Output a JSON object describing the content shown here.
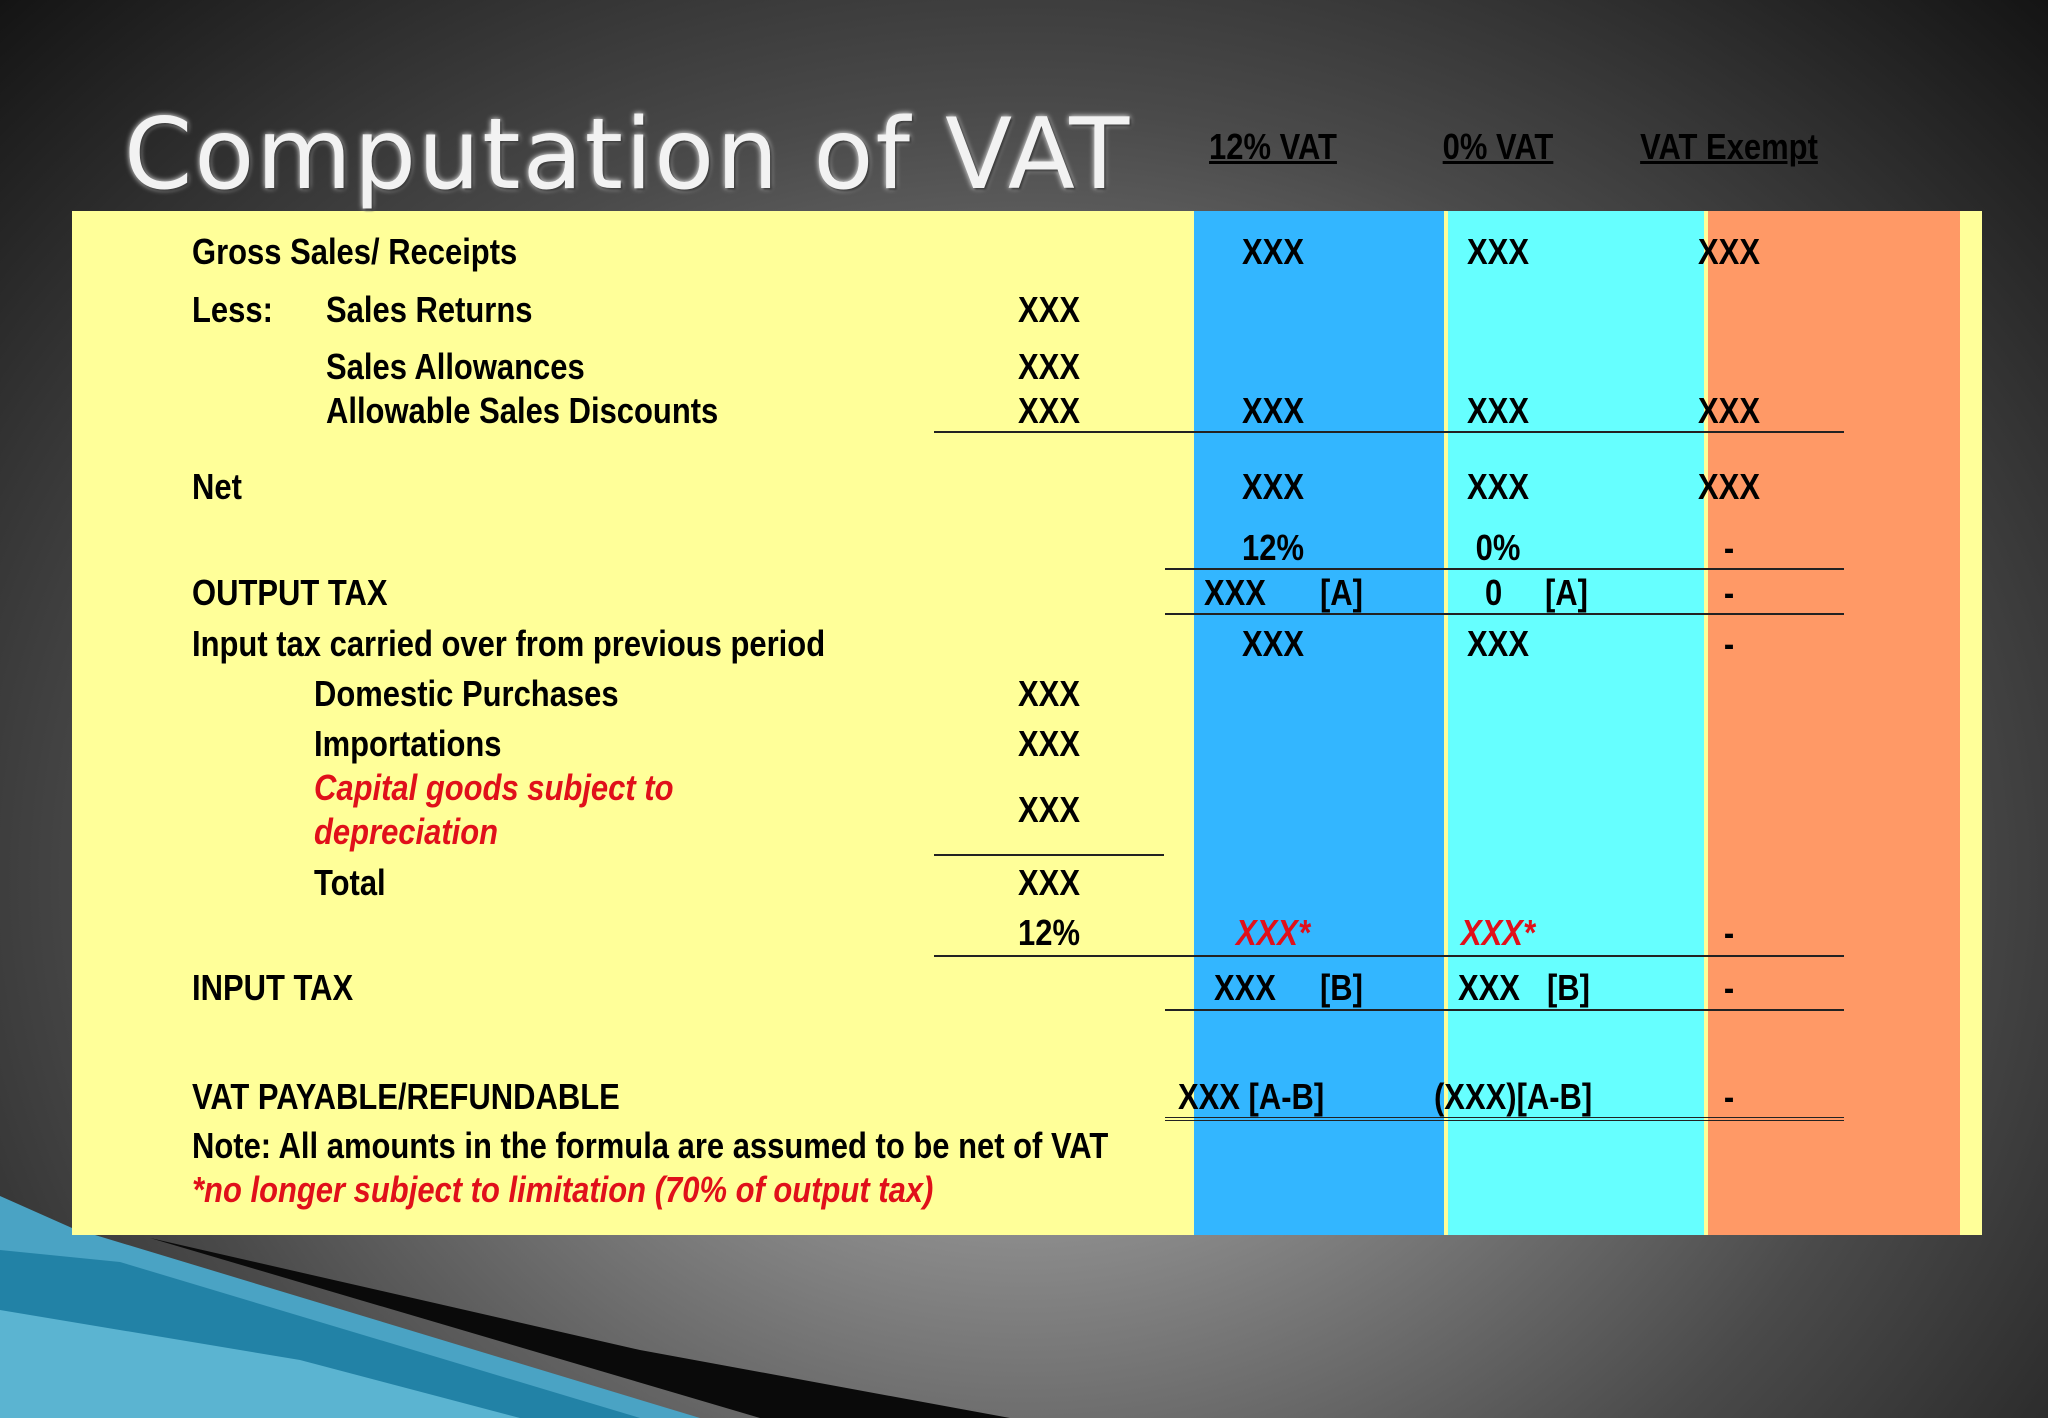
{
  "slide": {
    "title": "Computation of VAT",
    "headers": {
      "vat12": "12% VAT",
      "vat0": "0% VAT",
      "exempt": "VAT Exempt"
    }
  },
  "colors": {
    "panel": "#ffff99",
    "vat12_column": "#33b6ff",
    "vat0_column": "#66ffff",
    "exempt_column": "#ff9966",
    "red_text": "#e0101a"
  },
  "rows": {
    "gross": {
      "label": "Gross  Sales/ Receipts",
      "vat12": "XXX",
      "vat0": "XXX",
      "exempt": "XXX"
    },
    "less_prefix": "Less:",
    "sales_returns": {
      "label": "Sales Returns",
      "amount": "XXX"
    },
    "sales_allowances": {
      "label": "Sales Allowances",
      "amount": "XXX"
    },
    "allowable_discounts": {
      "label": "Allowable Sales Discounts",
      "amount": "XXX",
      "vat12": "XXX",
      "vat0": "XXX",
      "exempt": "XXX"
    },
    "net": {
      "label": "Net",
      "vat12": "XXX",
      "vat0": "XXX",
      "exempt": "XXX"
    },
    "rate": {
      "vat12": "12%",
      "vat0": "0%",
      "exempt": "-"
    },
    "output_tax": {
      "label": "OUTPUT TAX",
      "vat12": "XXX",
      "vat12_ref": "[A]",
      "vat0": "0",
      "vat0_ref": "[A]",
      "exempt": "-"
    },
    "carried_over": {
      "label": "Input tax carried over from previous period",
      "vat12": "XXX",
      "vat0": "XXX",
      "exempt": "-"
    },
    "domestic": {
      "label": "Domestic Purchases",
      "amount": "XXX"
    },
    "importations": {
      "label": "Importations",
      "amount": "XXX"
    },
    "capital_goods": {
      "label_line1": "Capital goods subject to",
      "label_line2": "depreciation",
      "amount": "XXX"
    },
    "total": {
      "label": "Total",
      "amount": "XXX"
    },
    "input_rate": {
      "amount": "12%",
      "vat12": "XXX*",
      "vat0": "XXX*",
      "exempt": "-"
    },
    "input_tax": {
      "label": "INPUT TAX",
      "vat12": "XXX",
      "vat12_ref": "[B]",
      "vat0": "XXX",
      "vat0_ref": "[B]",
      "exempt": "-"
    },
    "vat_payable": {
      "label": "VAT PAYABLE/REFUNDABLE",
      "vat12": "XXX   [A-B]",
      "vat0": "(XXX)[A-B]",
      "exempt": "-"
    }
  },
  "notes": {
    "note": "Note:  All  amounts in the formula are assumed to be net of VAT",
    "footnote": "*no longer subject to limitation (70% of output tax)"
  }
}
